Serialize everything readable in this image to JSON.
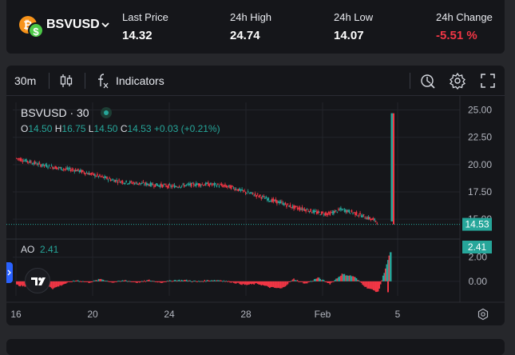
{
  "header": {
    "pair": "BSVUSD",
    "stats": [
      {
        "label": "Last Price",
        "value": "14.32"
      },
      {
        "label": "24h High",
        "value": "24.74"
      },
      {
        "label": "24h Low",
        "value": "14.07"
      },
      {
        "label": "24h Change",
        "value": "-5.51 %"
      }
    ]
  },
  "toolbar": {
    "interval": "30m",
    "indicators_label": "Indicators"
  },
  "legend": {
    "title": "BSVUSD · 30",
    "o_label": "O",
    "o": "14.50",
    "h_label": "H",
    "h": "16.75",
    "l_label": "L",
    "l": "14.50",
    "c_label": "C",
    "c": "14.53",
    "change": "+0.03 (+0.21%)"
  },
  "ao": {
    "label": "AO",
    "value": "2.41"
  },
  "colors": {
    "up": "#26a69a",
    "down": "#f23645",
    "background": "#15161a"
  },
  "chart_data": {
    "type": "candlestick",
    "symbol": "BSVUSD",
    "interval": "30",
    "price_axis_ticks": [
      "25.00",
      "22.50",
      "20.00",
      "17.50",
      "15.00"
    ],
    "ao_axis_ticks": [
      "2.00",
      "0.00"
    ],
    "x_tick_labels": [
      "16",
      "20",
      "24",
      "28",
      "Feb",
      "5"
    ],
    "price_ylim": [
      13.4,
      25.7
    ],
    "ao_ylim": [
      -1.2,
      3.3
    ],
    "last_price_label": "14.53",
    "ao_last_label": "2.41",
    "price_series": [
      {
        "x": 0,
        "y": 20.6
      },
      {
        "x": 1,
        "y": 20.3
      },
      {
        "x": 2,
        "y": 20.0
      },
      {
        "x": 3,
        "y": 19.8
      },
      {
        "x": 4,
        "y": 19.6
      },
      {
        "x": 5,
        "y": 19.5
      },
      {
        "x": 6,
        "y": 19.2
      },
      {
        "x": 7,
        "y": 18.9
      },
      {
        "x": 8,
        "y": 18.6
      },
      {
        "x": 9,
        "y": 18.4
      },
      {
        "x": 10,
        "y": 18.3
      },
      {
        "x": 11,
        "y": 18.2
      },
      {
        "x": 12,
        "y": 18.1
      },
      {
        "x": 13,
        "y": 18.0
      },
      {
        "x": 14,
        "y": 18.1
      },
      {
        "x": 15,
        "y": 18.2
      },
      {
        "x": 16,
        "y": 18.2
      },
      {
        "x": 17,
        "y": 18.1
      },
      {
        "x": 18,
        "y": 17.9
      },
      {
        "x": 19,
        "y": 17.5
      },
      {
        "x": 20,
        "y": 17.2
      },
      {
        "x": 21,
        "y": 16.8
      },
      {
        "x": 22,
        "y": 16.5
      },
      {
        "x": 23,
        "y": 16.1
      },
      {
        "x": 24,
        "y": 15.9
      },
      {
        "x": 25,
        "y": 15.6
      },
      {
        "x": 26,
        "y": 15.5
      },
      {
        "x": 27,
        "y": 15.9
      },
      {
        "x": 28,
        "y": 15.6
      },
      {
        "x": 29,
        "y": 15.2
      },
      {
        "x": 30,
        "y": 14.8
      },
      {
        "x": 31,
        "y": 24.7
      },
      {
        "x": 32,
        "y": 14.53
      }
    ],
    "ao_series": [
      {
        "x": 0,
        "y": -0.3
      },
      {
        "x": 1,
        "y": -0.5
      },
      {
        "x": 2,
        "y": 0.1
      },
      {
        "x": 3,
        "y": -0.6
      },
      {
        "x": 4,
        "y": -0.2
      },
      {
        "x": 5,
        "y": 0.1
      },
      {
        "x": 6,
        "y": -0.1
      },
      {
        "x": 7,
        "y": 0.2
      },
      {
        "x": 8,
        "y": -0.1
      },
      {
        "x": 9,
        "y": 0.1
      },
      {
        "x": 10,
        "y": -0.1
      },
      {
        "x": 11,
        "y": 0.1
      },
      {
        "x": 12,
        "y": -0.1
      },
      {
        "x": 13,
        "y": 0.1
      },
      {
        "x": 14,
        "y": 0.1
      },
      {
        "x": 15,
        "y": 0.0
      },
      {
        "x": 16,
        "y": 0.1
      },
      {
        "x": 17,
        "y": 0.1
      },
      {
        "x": 18,
        "y": -0.1
      },
      {
        "x": 19,
        "y": -0.3
      },
      {
        "x": 20,
        "y": -0.2
      },
      {
        "x": 21,
        "y": -0.5
      },
      {
        "x": 22,
        "y": -0.6
      },
      {
        "x": 23,
        "y": 0.2
      },
      {
        "x": 24,
        "y": -0.2
      },
      {
        "x": 25,
        "y": 0.3
      },
      {
        "x": 26,
        "y": -0.2
      },
      {
        "x": 27,
        "y": 0.6
      },
      {
        "x": 28,
        "y": 0.4
      },
      {
        "x": 29,
        "y": -0.5
      },
      {
        "x": 30,
        "y": -0.9
      },
      {
        "x": 31,
        "y": 2.41
      }
    ]
  }
}
